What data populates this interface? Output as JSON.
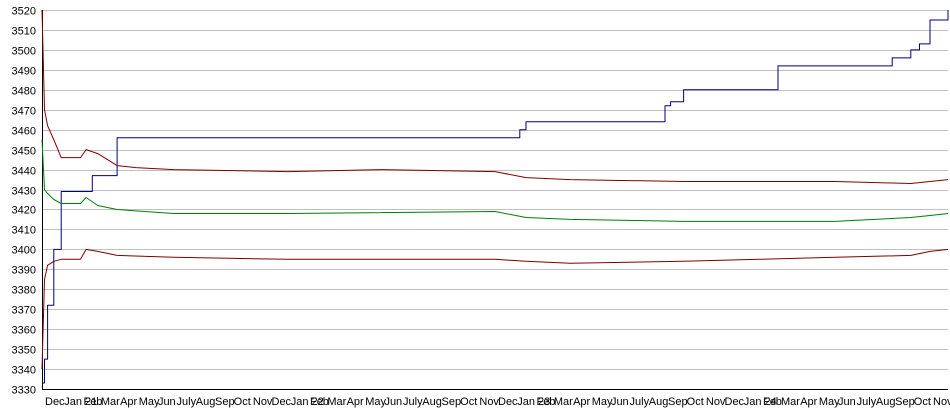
{
  "chart_data": {
    "type": "line",
    "title": "",
    "xlabel": "",
    "ylabel": "",
    "ylim": [
      3330,
      3520
    ],
    "y_ticks": [
      3330,
      3340,
      3350,
      3360,
      3370,
      3380,
      3390,
      3400,
      3410,
      3420,
      3430,
      3440,
      3450,
      3460,
      3470,
      3480,
      3490,
      3500,
      3510,
      3520
    ],
    "x_tick_labels": [
      "Dec",
      "Jan 21",
      "Feb",
      "Mar",
      "Apr",
      "May",
      "Jun",
      "July",
      "Aug",
      "Sep",
      "Oct",
      "Nov",
      "Dec",
      "Jan 22",
      "Feb",
      "Mar",
      "Apr",
      "May",
      "Jun",
      "July",
      "Aug",
      "Sep",
      "Oct",
      "Nov",
      "Dec",
      "Jan 23",
      "Feb",
      "Mar",
      "Apr",
      "May",
      "Jun",
      "July",
      "Aug",
      "Sep",
      "Oct",
      "Nov",
      "Dec",
      "Jan 24",
      "Feb",
      "Mar",
      "Apr",
      "May",
      "Jun",
      "July",
      "Aug",
      "Sep",
      "Oct",
      "Nov"
    ],
    "x_range": [
      "2020-12-01",
      "2024-11-30"
    ],
    "grid": "horizontal",
    "legend": "none",
    "series": [
      {
        "color": "#00007f",
        "x": [
          "2020-12-01",
          "2020-12-05",
          "2020-12-10",
          "2020-12-20",
          "2021-01-01",
          "2021-02-01",
          "2021-02-20",
          "2021-03-20",
          "2021-04-01",
          "2022-01-01",
          "2023-01-01",
          "2023-01-10",
          "2023-01-20",
          "2023-08-20",
          "2023-09-01",
          "2023-09-10",
          "2023-10-01",
          "2024-01-01",
          "2024-02-01",
          "2024-03-01",
          "2024-08-01",
          "2024-09-01",
          "2024-10-01",
          "2024-10-15",
          "2024-11-01",
          "2024-11-30"
        ],
        "values": [
          3333,
          3345,
          3372,
          3400,
          3429,
          3429,
          3437,
          3437,
          3456,
          3456,
          3456,
          3460,
          3464,
          3464,
          3472,
          3474,
          3480,
          3480,
          3480,
          3492,
          3492,
          3496,
          3500,
          3503,
          3515,
          3520
        ]
      },
      {
        "color": "#7f0000",
        "x": [
          "2020-12-01",
          "2020-12-05",
          "2020-12-10",
          "2020-12-20",
          "2021-01-01",
          "2021-02-01",
          "2021-02-10",
          "2021-03-01",
          "2021-04-01",
          "2021-05-01",
          "2021-07-01",
          "2022-01-01",
          "2022-06-01",
          "2022-12-01",
          "2023-01-20",
          "2023-04-01",
          "2023-10-01",
          "2024-02-01",
          "2024-06-01",
          "2024-10-01",
          "2024-11-01",
          "2024-11-30"
        ],
        "values": [
          3520,
          3470,
          3462,
          3455,
          3446,
          3446,
          3450,
          3448,
          3442,
          3441,
          3440,
          3439,
          3440,
          3439,
          3436,
          3435,
          3434,
          3434,
          3434,
          3433,
          3434,
          3435
        ]
      },
      {
        "color": "#007f00",
        "x": [
          "2020-12-01",
          "2020-12-05",
          "2020-12-10",
          "2020-12-20",
          "2021-01-01",
          "2021-02-01",
          "2021-02-10",
          "2021-03-01",
          "2021-04-01",
          "2021-07-01",
          "2022-01-01",
          "2022-12-01",
          "2023-01-20",
          "2023-04-01",
          "2023-10-01",
          "2024-06-01",
          "2024-10-01",
          "2024-11-01",
          "2024-11-30"
        ],
        "values": [
          3455,
          3430,
          3428,
          3425,
          3423,
          3423,
          3426,
          3422,
          3420,
          3418,
          3418,
          3419,
          3416,
          3415,
          3414,
          3414,
          3416,
          3417,
          3418
        ]
      },
      {
        "color": "#7f0000",
        "x": [
          "2020-12-01",
          "2020-12-05",
          "2020-12-10",
          "2020-12-20",
          "2021-01-01",
          "2021-02-01",
          "2021-02-10",
          "2021-03-01",
          "2021-04-01",
          "2021-07-01",
          "2022-01-01",
          "2022-12-01",
          "2023-01-20",
          "2023-04-01",
          "2023-10-01",
          "2024-02-01",
          "2024-06-01",
          "2024-10-01",
          "2024-11-01",
          "2024-11-30"
        ],
        "values": [
          3340,
          3385,
          3392,
          3394,
          3395,
          3395,
          3400,
          3399,
          3397,
          3396,
          3395,
          3395,
          3394,
          3393,
          3394,
          3395,
          3396,
          3397,
          3399,
          3400
        ]
      }
    ]
  }
}
